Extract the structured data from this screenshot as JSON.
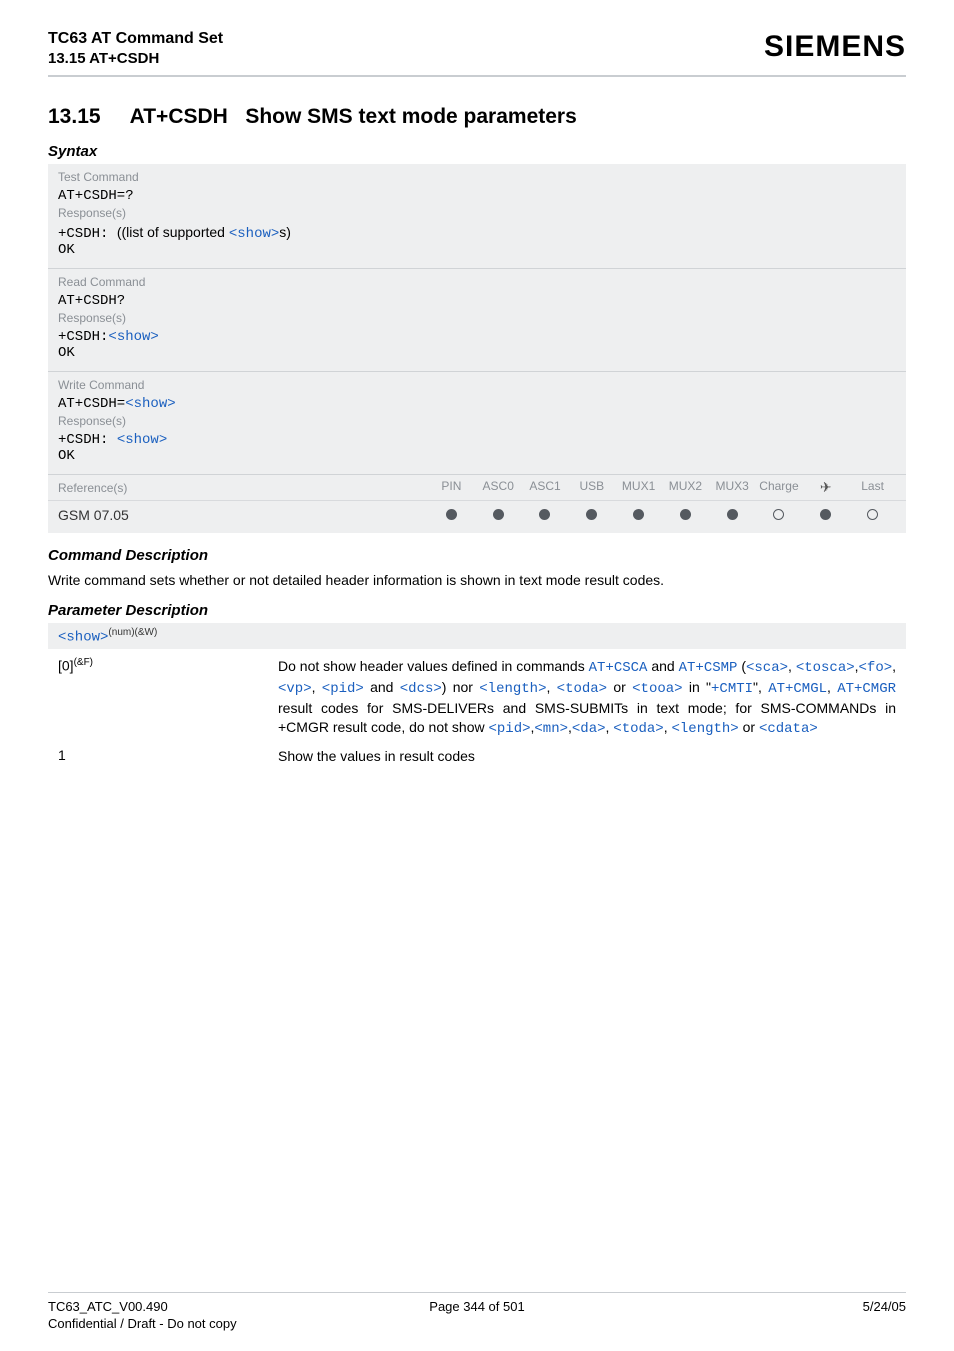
{
  "header": {
    "doc_title": "TC63 AT Command Set",
    "subsection": "13.15 AT+CSDH",
    "brand": "SIEMENS"
  },
  "section": {
    "number": "13.15",
    "cmd": "AT+CSDH",
    "title": "Show SMS text mode parameters"
  },
  "syntax_label": "Syntax",
  "test_block": {
    "label": "Test Command",
    "cmd": "AT+CSDH=?",
    "resp_label": "Response(s)",
    "prefix": "+CSDH: ",
    "list_open": "((list of supported ",
    "show": "<show>",
    "list_close": "s)",
    "ok": "OK"
  },
  "read_block": {
    "label": "Read Command",
    "cmd": "AT+CSDH?",
    "resp_label": "Response(s)",
    "prefix": "+CSDH:",
    "show": "<show>",
    "ok": "OK"
  },
  "write_block": {
    "label": "Write Command",
    "cmd_prefix": "AT+CSDH=",
    "cmd_show": "<show>",
    "resp_label": "Response(s)",
    "prefix": "+CSDH: ",
    "show": "<show>",
    "ok": "OK"
  },
  "ref_row": {
    "label": "Reference(s)",
    "cols": [
      "PIN",
      "ASC0",
      "ASC1",
      "USB",
      "MUX1",
      "MUX2",
      "MUX3",
      "Charge",
      "✈",
      "Last"
    ],
    "data_label": "GSM 07.05",
    "dots": [
      "filled",
      "filled",
      "filled",
      "filled",
      "filled",
      "filled",
      "filled",
      "empty",
      "filled",
      "empty"
    ]
  },
  "cmd_desc_label": "Command Description",
  "cmd_desc_text": "Write command sets whether or not detailed header information is shown in text mode result codes.",
  "param_desc_label": "Parameter Description",
  "param_header": {
    "name": "<show>",
    "sup": "(num)(&W)"
  },
  "param_rows": {
    "row0": {
      "key": "[0]",
      "key_sup": "(&F)",
      "t1": "Do not show header values defined in commands ",
      "c1": "AT+CSCA",
      "t2": " and ",
      "c2": "AT+CSMP",
      "t3": " (",
      "p_sca": "<sca>",
      "tc1": ", ",
      "p_tosca": "<tosca>",
      "tc2": ",",
      "p_fo": "<fo>",
      "tc3": ",",
      "p_vp": "<vp>",
      "tc4": ", ",
      "p_pid": "<pid>",
      "t4": " and ",
      "p_dcs": "<dcs>",
      "t5": ") nor ",
      "p_length": "<length>",
      "tc5": ", ",
      "p_toda": "<toda>",
      "t6": " or ",
      "p_tooa": "<tooa>",
      "t7": " in \"",
      "c3": "+CMTI",
      "t8": "\", ",
      "c4": "AT+CMGL",
      "tc6": ", ",
      "c5": "AT+CMGR",
      "t9": " result codes for SMS-DELIVERs and SMS-SUBMITs in text mode; for SMS-COMMANDs in +CMGR result code, do not show ",
      "p_pid2": "<pid>",
      "tc7": ",",
      "p_mn": "<mn>",
      "tc8": ",",
      "p_da": "<da>",
      "tc9": ", ",
      "p_toda2": "<toda>",
      "tc10": ", ",
      "p_length2": "<length>",
      "t10": " or ",
      "p_cdata": "<cdata>"
    },
    "row1": {
      "key": "1",
      "val": "Show the values in result codes"
    }
  },
  "footer": {
    "left": "TC63_ATC_V00.490",
    "center": "Page 344 of 501",
    "right": "5/24/05",
    "conf": "Confidential / Draft - Do not copy"
  }
}
